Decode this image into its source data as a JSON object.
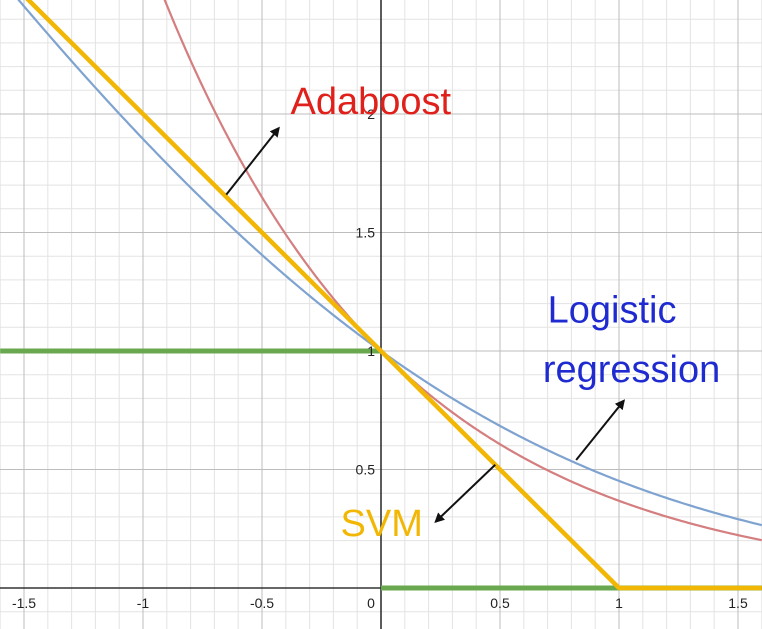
{
  "chart_data": {
    "type": "line",
    "title": "",
    "xlabel": "",
    "ylabel": "",
    "xlim": [
      -1.6,
      1.6
    ],
    "ylim": [
      -0.05,
      2.45
    ],
    "grid": true,
    "x_ticks": [
      {
        "value": -1.5,
        "label": "-1.5"
      },
      {
        "value": -1,
        "label": "-1"
      },
      {
        "value": -0.5,
        "label": "-0.5"
      },
      {
        "value": 0,
        "label": "0"
      },
      {
        "value": 0.5,
        "label": "0.5"
      },
      {
        "value": 1,
        "label": "1"
      },
      {
        "value": 1.5,
        "label": "1.5"
      }
    ],
    "y_ticks": [
      {
        "value": 0.5,
        "label": "0.5"
      },
      {
        "value": 1,
        "label": "1"
      },
      {
        "value": 1.5,
        "label": "1.5"
      },
      {
        "value": 2,
        "label": "2"
      }
    ],
    "series": [
      {
        "key": "zero_one",
        "color": "#6aa84f",
        "points": [
          [
            -1.6,
            1
          ],
          [
            0,
            1
          ],
          [
            0,
            0
          ],
          [
            1.6,
            0
          ]
        ]
      },
      {
        "key": "adaboost",
        "color": "#d47e80",
        "function": "exp",
        "points": [
          [
            -0.9,
            2.46
          ],
          [
            -0.75,
            2.117
          ],
          [
            -0.5,
            1.649
          ],
          [
            -0.25,
            1.284
          ],
          [
            0,
            1.0
          ],
          [
            0.25,
            0.779
          ],
          [
            0.5,
            0.607
          ],
          [
            0.75,
            0.472
          ],
          [
            1.0,
            0.368
          ],
          [
            1.25,
            0.287
          ],
          [
            1.5,
            0.223
          ],
          [
            1.6,
            0.202
          ]
        ]
      },
      {
        "key": "logistic",
        "color": "#7fa3d0",
        "function": "log2(1+exp(-x))",
        "points": [
          [
            -1.6,
            2.67
          ],
          [
            -1.5,
            2.503
          ],
          [
            -1.0,
            1.893
          ],
          [
            -0.5,
            1.396
          ],
          [
            0,
            1.0
          ],
          [
            0.5,
            0.699
          ],
          [
            1.0,
            0.453
          ],
          [
            1.5,
            0.291
          ],
          [
            1.6,
            0.267
          ]
        ]
      },
      {
        "key": "svm",
        "color": "#f2b705",
        "function": "hinge",
        "points": [
          [
            -1.6,
            2.6
          ],
          [
            1,
            0
          ],
          [
            1.6,
            0
          ]
        ]
      }
    ],
    "annotations": [
      {
        "key": "adaboost",
        "text": "Adaboost",
        "color": "#e0201b",
        "at": [
          -0.38,
          2.0
        ],
        "arrow_from": [
          -0.65,
          1.66
        ],
        "arrow_to": [
          -0.43,
          1.94
        ]
      },
      {
        "key": "logistic1",
        "text": "Logistic",
        "color": "#1f2bd0",
        "at": [
          0.7,
          1.12
        ]
      },
      {
        "key": "logistic2",
        "text": "regression",
        "color": "#1f2bd0",
        "at": [
          0.68,
          0.87
        ]
      },
      {
        "key": "svm",
        "text": "SVM",
        "color": "#f2b705",
        "at": [
          -0.17,
          0.22
        ],
        "arrow_from": [
          0.48,
          0.52
        ],
        "arrow_to": [
          0.23,
          0.28
        ]
      },
      {
        "key": "logistic_arrow",
        "text": "",
        "color": "#111111",
        "arrow_from": [
          0.82,
          0.54
        ],
        "arrow_to": [
          1.02,
          0.79
        ]
      }
    ]
  }
}
